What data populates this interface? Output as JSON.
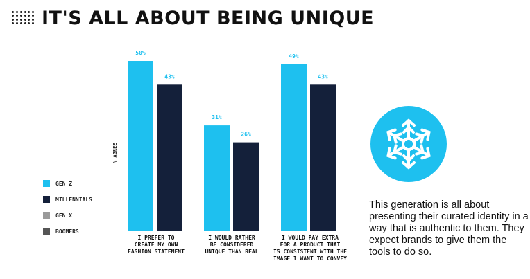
{
  "title": "IT'S ALL ABOUT BEING UNIQUE",
  "icon": "snowflake-icon",
  "colors": {
    "gen_z": "#1ec0ef",
    "millennials": "#14203a",
    "gen_x": "#9a9a9a",
    "boomers": "#555555",
    "badge": "#1ec0ef"
  },
  "legend": [
    {
      "label": "GEN Z",
      "color": "#1ec0ef"
    },
    {
      "label": "MILLENNIALS",
      "color": "#14203a"
    },
    {
      "label": "GEN X",
      "color": "#9a9a9a"
    },
    {
      "label": "BOOMERS",
      "color": "#555555"
    }
  ],
  "note": "This generation is all about presenting their curated identity in a way that is authentic to them. They expect brands to give them the tools to do so.",
  "chart_data": {
    "type": "bar",
    "categories": [
      [
        "I PREFER TO",
        "CREATE MY OWN",
        "FASHION STATEMENT"
      ],
      [
        "I WOULD RATHER",
        "BE CONSIDERED",
        "UNIQUE THAN REAL"
      ],
      [
        "I WOULD PAY EXTRA",
        "FOR A PRODUCT THAT",
        "IS CONSISTENT WITH THE",
        "IMAGE I WANT TO CONVEY"
      ]
    ],
    "series": [
      {
        "name": "GEN Z",
        "values": [
          50,
          31,
          49
        ],
        "labels": [
          "50%",
          "31%",
          "49%"
        ],
        "color": "#1ec0ef"
      },
      {
        "name": "MILLENNIALS",
        "values": [
          43,
          26,
          43
        ],
        "labels": [
          "43%",
          "26%",
          "43%"
        ],
        "color": "#14203a"
      }
    ],
    "ylabel": "% AGREE",
    "ylim": [
      0,
      50
    ],
    "grid": false,
    "legend": "left"
  }
}
